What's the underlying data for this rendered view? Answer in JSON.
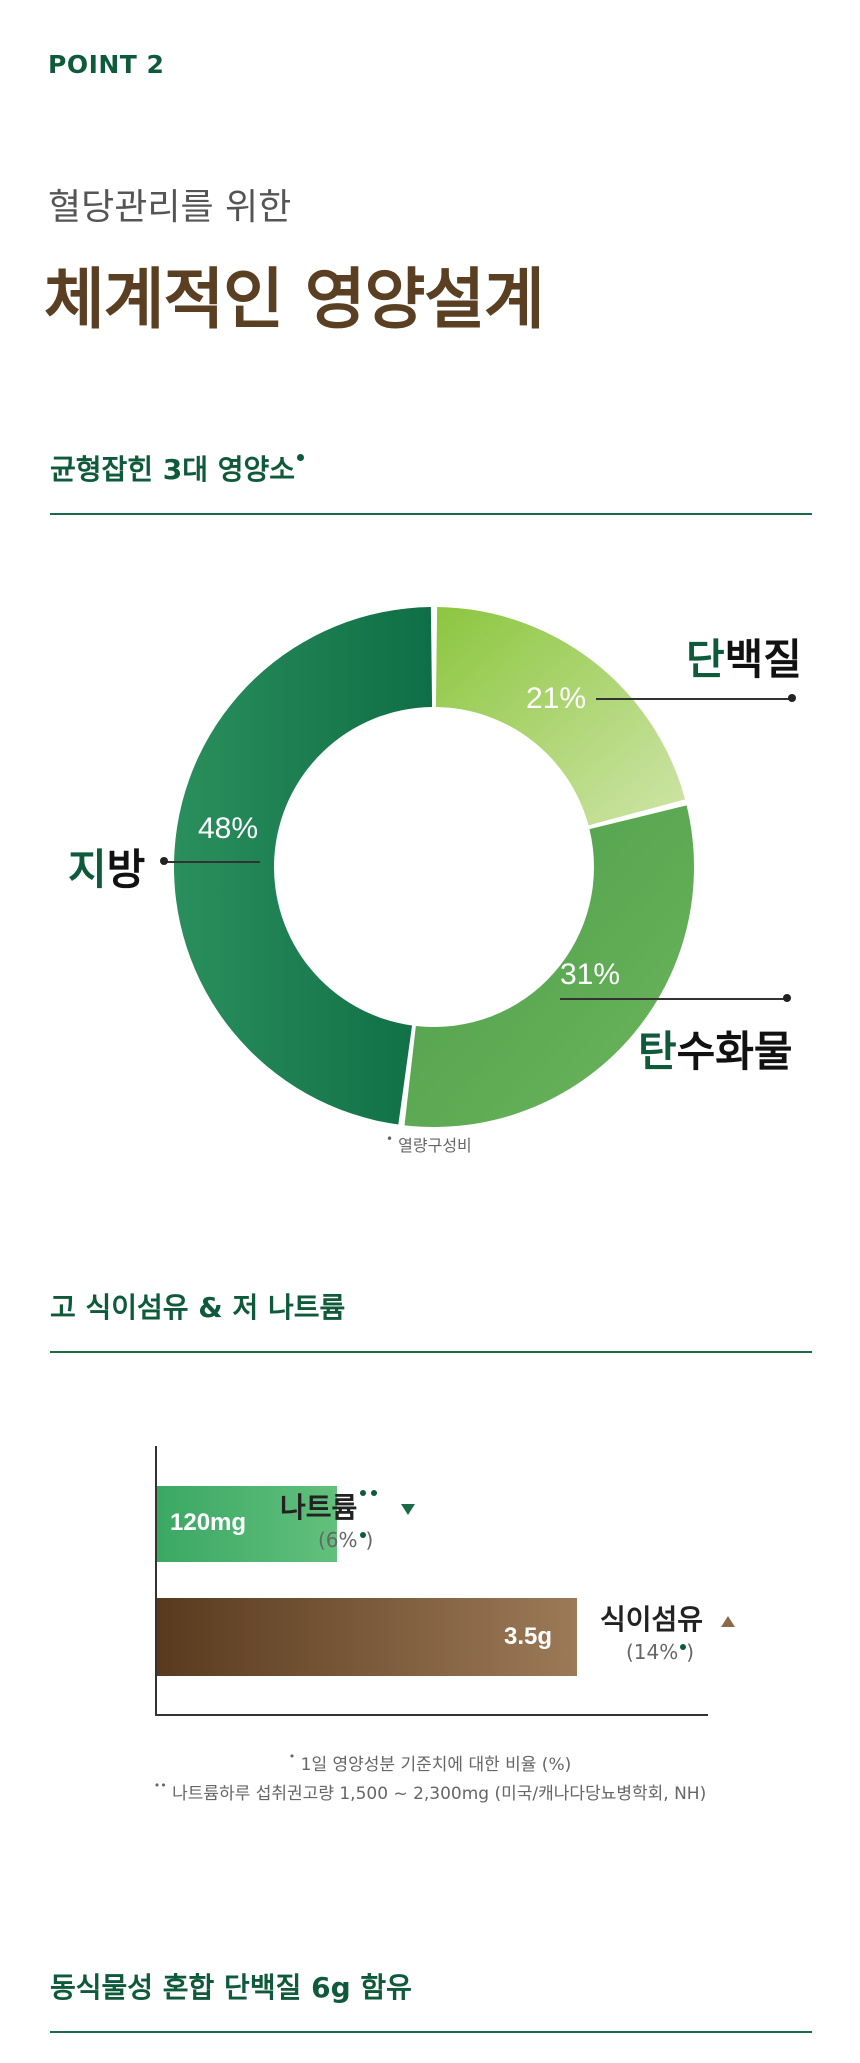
{
  "header": {
    "point_label": "POINT 2",
    "subtitle": "혈당관리를 위한",
    "title": "체계적인 영양설계"
  },
  "section1": {
    "title": "균형잡힌 3대 영양소",
    "note": "열량구성비"
  },
  "chart_data": {
    "type": "pie",
    "categories": [
      "단백질",
      "탄수화물",
      "지방"
    ],
    "values": [
      21,
      31,
      48
    ],
    "labels": [
      "21%",
      "31%",
      "48%"
    ],
    "colors": [
      "#9ccc65",
      "#5ca755",
      "#16774b"
    ]
  },
  "nutrients": {
    "protein_first": "단",
    "protein_rest": "백질",
    "carb_first": "탄",
    "carb_rest": "수화물",
    "fat_first": "지",
    "fat_rest": "방"
  },
  "section2": {
    "title": "고 식이섬유 & 저 나트륨",
    "sodium": {
      "value": "120mg",
      "name": "나트륨",
      "pct_open": "(6%",
      "pct_close": ")",
      "percent": 6,
      "trend": "down",
      "color": "#3da862"
    },
    "fiber": {
      "value": "3.5g",
      "name": "식이섬유",
      "pct_open": "(14%",
      "pct_close": ")",
      "percent": 14,
      "trend": "up",
      "color": "#7a5533"
    },
    "footnote1": "1일 영양성분 기준치에 대한 비율 (%)",
    "footnote2": "나트륨하루 섭취권고량 1,500 ~ 2,300mg (미국/캐나다당뇨병학회, NH)"
  },
  "section3": {
    "title": "동식물성 혼합 단백질 6g 함유"
  }
}
